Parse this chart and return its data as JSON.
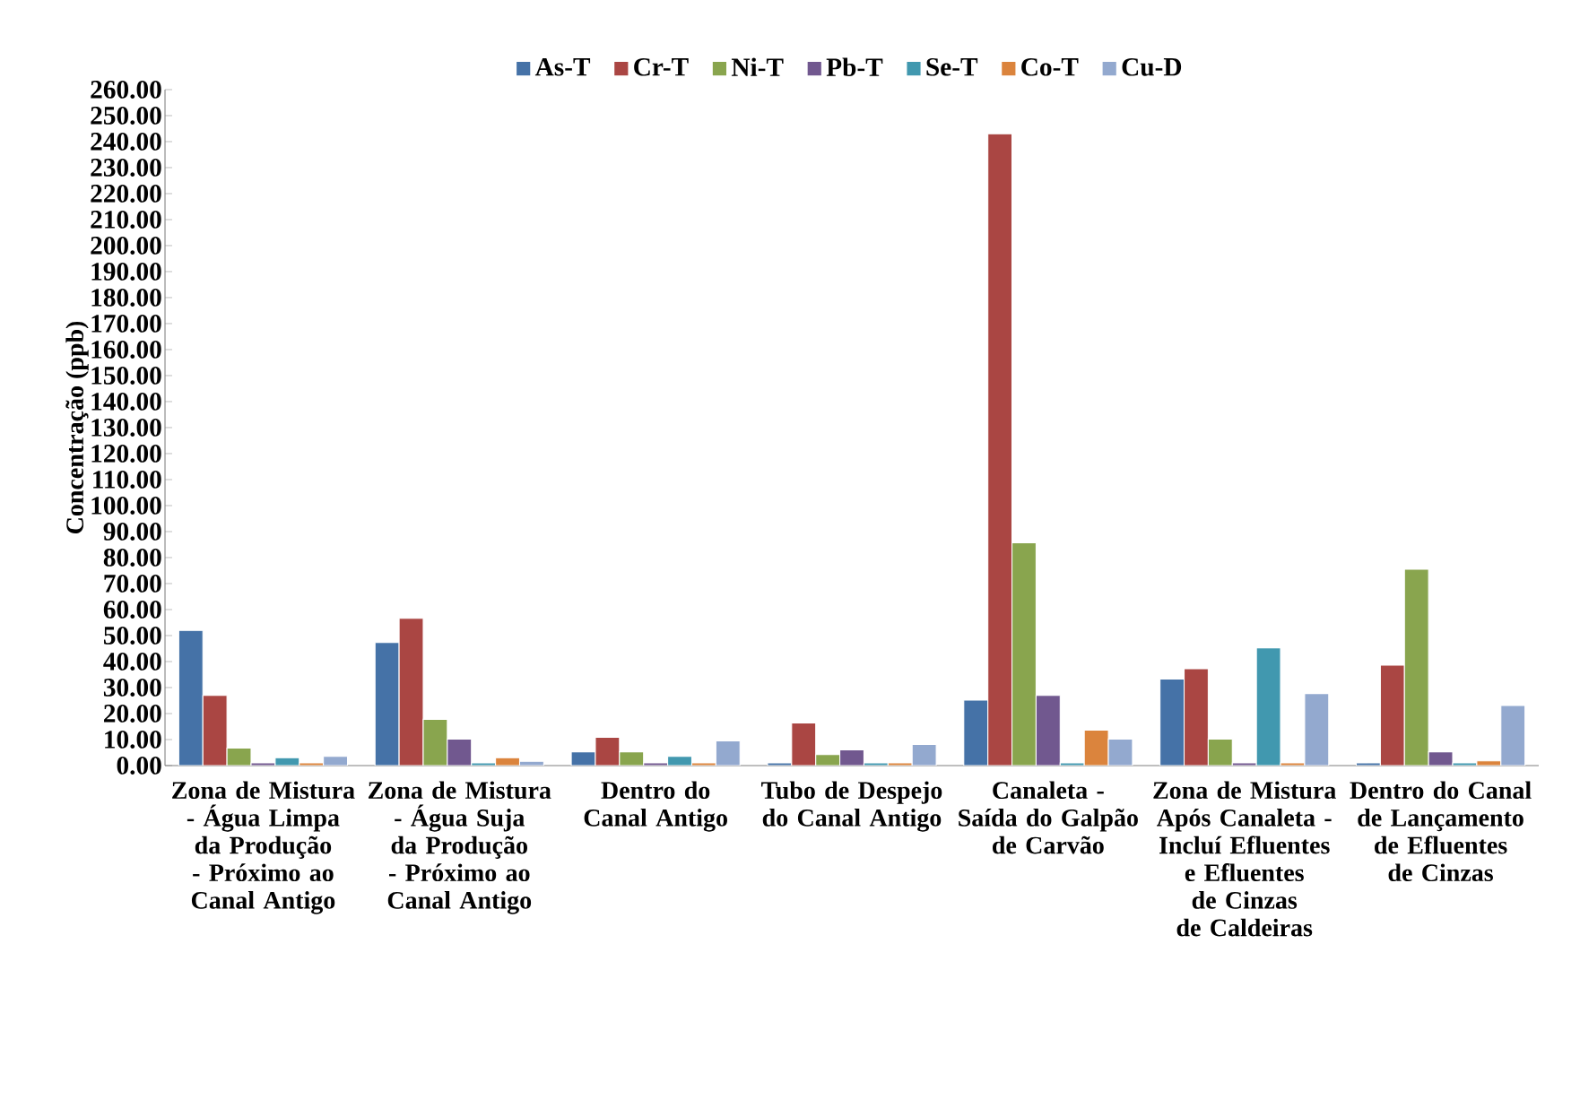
{
  "chart_data": {
    "type": "bar",
    "ylabel": "Concentração (ppb)",
    "categories": [
      "Zona de Mistura - Água Limpa da Produção - Próximo ao Canal Antigo",
      "Zona de Mistura - Água Suja da Produção - Próximo ao Canal Antigo",
      "Dentro do Canal Antigo",
      "Tubo de Despejo do Canal Antigo",
      "Canaleta - Saída do Galpão de Carvão",
      "Zona de Mistura Após Canaleta - Incluí Efluentes e Efluentes de Cinzas de Caldeiras",
      "Dentro do Canal de Lançamento de Efluentes de Cinzas"
    ],
    "series": [
      {
        "name": "As-T",
        "color": "#4572a7",
        "values": [
          52,
          47.3,
          5.3,
          1,
          25.2,
          33.3,
          1
        ]
      },
      {
        "name": "Cr-T",
        "color": "#aa4643",
        "values": [
          27,
          56.6,
          10.9,
          16.4,
          243,
          37.2,
          38.6
        ]
      },
      {
        "name": "Ni-T",
        "color": "#89a54e",
        "values": [
          6.7,
          17.8,
          5.3,
          4.2,
          85.7,
          10.2,
          75.5
        ]
      },
      {
        "name": "Pb-T",
        "color": "#71588f",
        "values": [
          1,
          10.2,
          1,
          6,
          27,
          1,
          5.3
        ]
      },
      {
        "name": "Se-T",
        "color": "#4198af",
        "values": [
          3,
          1,
          3.5,
          1,
          1,
          45.3,
          1
        ]
      },
      {
        "name": "Co-T",
        "color": "#db843d",
        "values": [
          1,
          3,
          1,
          1,
          13.6,
          1,
          1.8
        ]
      },
      {
        "name": "Cu-D",
        "color": "#93a9cf",
        "values": [
          3.5,
          1.6,
          9.5,
          8.1,
          10.2,
          27.7,
          23.1
        ]
      }
    ],
    "ylim": [
      0,
      260
    ],
    "yticks": [
      {
        "value": 0,
        "label": "0.00"
      },
      {
        "value": 10,
        "label": "10.00"
      },
      {
        "value": 20,
        "label": "20.00"
      },
      {
        "value": 30,
        "label": "30.00"
      },
      {
        "value": 40,
        "label": "40.00"
      },
      {
        "value": 50,
        "label": "50.00"
      },
      {
        "value": 60,
        "label": "60.00"
      },
      {
        "value": 70,
        "label": "70.00"
      },
      {
        "value": 80,
        "label": "80.00"
      },
      {
        "value": 90,
        "label": "90.00"
      },
      {
        "value": 100,
        "label": "100.00"
      },
      {
        "value": 110,
        "label": "110.00"
      },
      {
        "value": 120,
        "label": "120.00"
      },
      {
        "value": 130,
        "label": "130.00"
      },
      {
        "value": 140,
        "label": "140.00"
      },
      {
        "value": 150,
        "label": "150.00"
      },
      {
        "value": 160,
        "label": "160.00"
      },
      {
        "value": 170,
        "label": "170.00"
      },
      {
        "value": 180,
        "label": "180.00"
      },
      {
        "value": 190,
        "label": "190.00"
      },
      {
        "value": 200,
        "label": "200.00"
      },
      {
        "value": 210,
        "label": "210.00"
      },
      {
        "value": 220,
        "label": "220.00"
      },
      {
        "value": 230,
        "label": "230.00"
      },
      {
        "value": 240,
        "label": "240.00"
      },
      {
        "value": 250,
        "label": "250.00"
      },
      {
        "value": 260,
        "label": "260.00"
      }
    ],
    "grid": false,
    "legend": "top"
  }
}
